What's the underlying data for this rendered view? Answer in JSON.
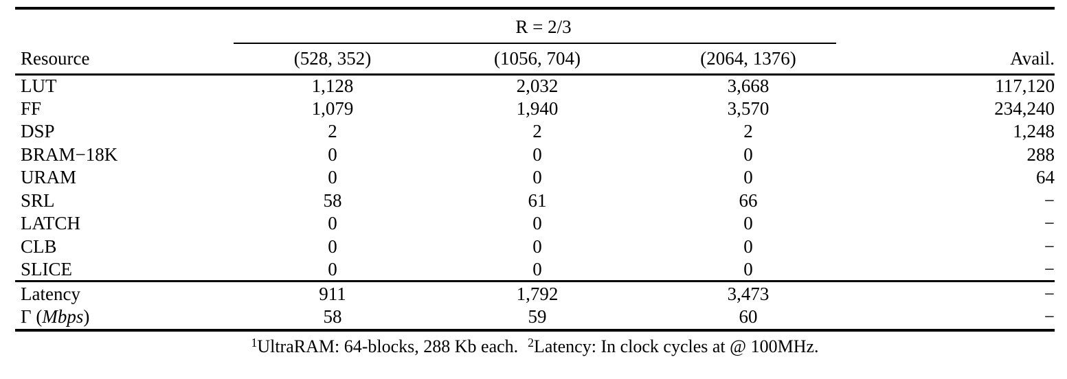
{
  "table": {
    "group_header": "R = 2/3",
    "columns": [
      "Resource",
      "(528, 352)",
      "(1056, 704)",
      "(2064, 1376)",
      "Avail."
    ],
    "rows": [
      {
        "label": "LUT",
        "v1": "1,128",
        "v2": "2,032",
        "v3": "3,668",
        "avail": "117,120"
      },
      {
        "label": "FF",
        "v1": "1,079",
        "v2": "1,940",
        "v3": "3,570",
        "avail": "234,240"
      },
      {
        "label": "DSP",
        "v1": "2",
        "v2": "2",
        "v3": "2",
        "avail": "1,248"
      },
      {
        "label": "BRAM−18K",
        "v1": "0",
        "v2": "0",
        "v3": "0",
        "avail": "288"
      },
      {
        "label": "URAM",
        "v1": "0",
        "v2": "0",
        "v3": "0",
        "avail": "64"
      },
      {
        "label": "SRL",
        "v1": "58",
        "v2": "61",
        "v3": "66",
        "avail": "−"
      },
      {
        "label": "LATCH",
        "v1": "0",
        "v2": "0",
        "v3": "0",
        "avail": "−"
      },
      {
        "label": "CLB",
        "v1": "0",
        "v2": "0",
        "v3": "0",
        "avail": "−"
      },
      {
        "label": "SLICE",
        "v1": "0",
        "v2": "0",
        "v3": "0",
        "avail": "−"
      }
    ],
    "summary_rows": [
      {
        "label": "Latency",
        "v1": "911",
        "v2": "1,792",
        "v3": "3,473",
        "avail": "−"
      },
      {
        "label_pre": "Γ (",
        "label_italic": "Mbps",
        "label_post": ")",
        "v1": "58",
        "v2": "59",
        "v3": "60",
        "avail": "−"
      }
    ]
  },
  "footnote": {
    "sup1": "1",
    "note1": "UltraRAM: 64-blocks, 288 Kb each.",
    "sup2": "2",
    "note2": "Latency: In clock cycles at @ 100MHz."
  }
}
